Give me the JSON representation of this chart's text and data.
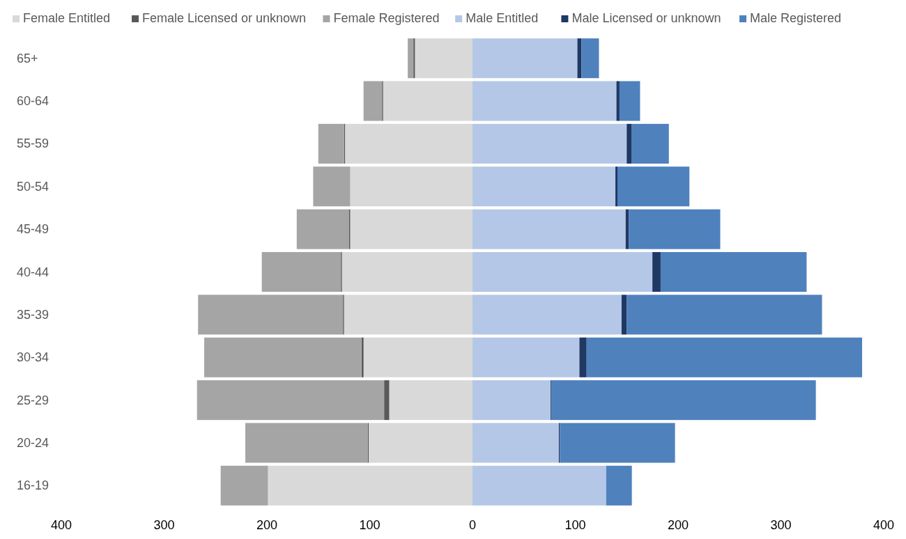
{
  "chart_data": {
    "type": "bar",
    "orientation": "horizontal",
    "stacked": true,
    "legend": "top",
    "categories": [
      "65+",
      "60-64",
      "55-59",
      "50-54",
      "45-49",
      "40-44",
      "35-39",
      "30-34",
      "25-29",
      "20-24",
      "16-19"
    ],
    "xlim": [
      -400,
      400
    ],
    "xticks": [
      {
        "value": -400,
        "label": "400"
      },
      {
        "value": -300,
        "label": "300"
      },
      {
        "value": -200,
        "label": "200"
      },
      {
        "value": -100,
        "label": "100"
      },
      0,
      100,
      200,
      300,
      400
    ],
    "series": [
      {
        "name": "Female Entitled",
        "color": "#d9d9d9",
        "values": [
          -56,
          -87,
          -124,
          -119,
          -119,
          -127,
          -125,
          -106,
          -81,
          -101,
          -199
        ]
      },
      {
        "name": "Female Licensed or unknown",
        "color": "#595959",
        "values": [
          -1.5,
          -1,
          -1,
          null,
          -1,
          -1,
          -1,
          -2,
          -5,
          -1,
          0
        ]
      },
      {
        "name": "Female Registered",
        "color": "#a5a5a5",
        "values": [
          -5.5,
          -18,
          -25,
          -36,
          -51,
          -77,
          -141,
          -153,
          -182,
          -119,
          -46
        ]
      },
      {
        "name": "Male Entitled",
        "color": "#b4c7e7",
        "values": [
          102,
          140,
          150,
          139,
          149,
          175,
          145,
          104,
          76,
          84,
          130
        ]
      },
      {
        "name": "Male Licensed or unknown",
        "color": "#1f3864",
        "values": [
          4,
          3,
          5,
          2,
          3,
          8,
          5,
          7,
          1,
          1,
          0
        ]
      },
      {
        "name": "Male Registered",
        "color": "#4f81bd",
        "values": [
          17,
          20,
          36,
          70,
          89,
          142,
          190,
          268,
          257,
          112,
          25
        ]
      }
    ]
  }
}
